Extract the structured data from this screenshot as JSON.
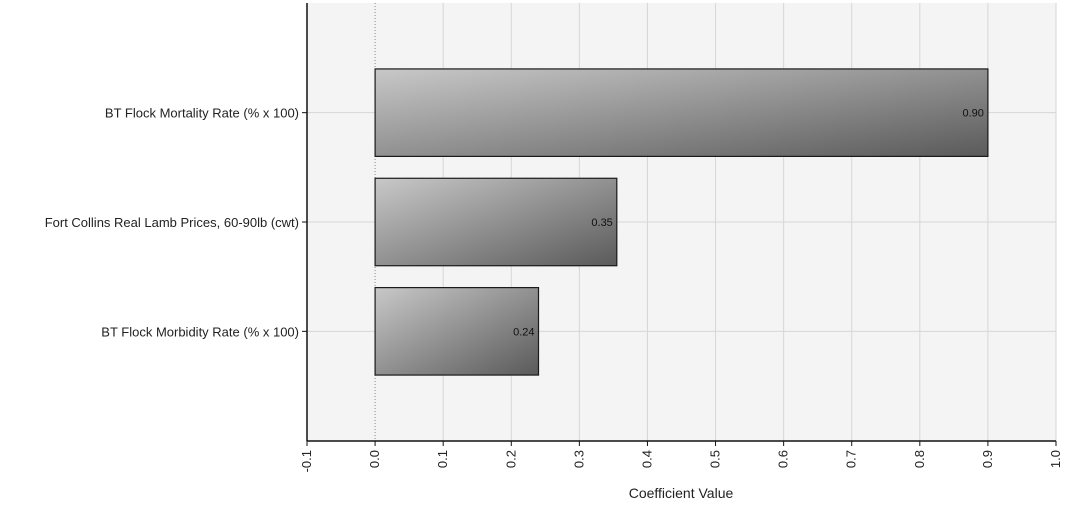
{
  "chart_data": {
    "type": "bar",
    "orientation": "horizontal",
    "categories": [
      "BT Flock Mortality Rate (% x 100)",
      "Fort Collins Real Lamb Prices, 60-90lb (cwt)",
      "BT Flock Morbidity Rate (% x 100)"
    ],
    "values": [
      0.9,
      0.355,
      0.24
    ],
    "data_labels": [
      "0.90",
      "0.35",
      "0.24"
    ],
    "xlabel": "Coefficient  Value",
    "ylabel": "",
    "xlim": [
      -0.1,
      1.0
    ],
    "x_ticks": [
      -0.1,
      0.0,
      0.1,
      0.2,
      0.3,
      0.4,
      0.5,
      0.6,
      0.7,
      0.8,
      0.9,
      1.0
    ],
    "x_tick_labels": [
      "-0.1",
      "0.0",
      "0.1",
      "0.2",
      "0.3",
      "0.4",
      "0.5",
      "0.6",
      "0.7",
      "0.8",
      "0.9",
      "1.0"
    ],
    "grid": true,
    "zero_line": "dotted",
    "colors": {
      "plot_background": "#f4f4f4",
      "grid": "#d6d6d6",
      "bar_light": "#c8c8c8",
      "bar_dark": "#5a5a5a",
      "bar_border": "#1a1a1a",
      "axis": "#111111"
    }
  }
}
